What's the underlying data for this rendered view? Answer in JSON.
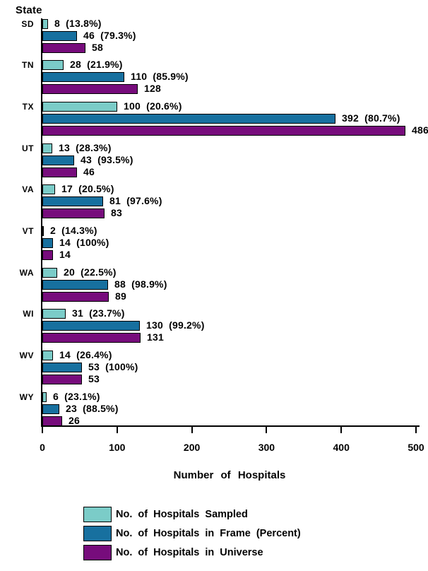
{
  "chart_data": {
    "type": "bar",
    "orientation": "horizontal",
    "y_axis_title": "State",
    "xlabel": "Number of Hospitals",
    "xlim": [
      0,
      500
    ],
    "x_ticks": [
      0,
      100,
      200,
      300,
      400,
      500
    ],
    "x_tick_labels": [
      "0",
      "100",
      "200",
      "300",
      "400",
      "500"
    ],
    "grid": false,
    "legend_position": "bottom-left",
    "categories": [
      "SD",
      "TN",
      "TX",
      "UT",
      "VA",
      "VT",
      "WA",
      "WI",
      "WV",
      "WY"
    ],
    "series": [
      {
        "key": "sampled",
        "name": "No. of Hospitals Sampled",
        "color": "#7BCCC8",
        "values": [
          8,
          28,
          100,
          13,
          17,
          2,
          20,
          31,
          14,
          6
        ],
        "labels": [
          "8  (13.8%)",
          "28  (21.9%)",
          "100  (20.6%)",
          "13  (28.3%)",
          "17  (20.5%)",
          "2  (14.3%)",
          "20  (22.5%)",
          "31  (23.7%)",
          "14  (26.4%)",
          "6  (23.1%)"
        ]
      },
      {
        "key": "frame",
        "name": "No. of Hospitals in Frame (Percent)",
        "color": "#17709F",
        "values": [
          46,
          110,
          392,
          43,
          81,
          14,
          88,
          130,
          53,
          23
        ],
        "labels": [
          "46  (79.3%)",
          "110  (85.9%)",
          "392  (80.7%)",
          "43  (93.5%)",
          "81  (97.6%)",
          "14  (100%)",
          "88  (98.9%)",
          "130  (99.2%)",
          "53  (100%)",
          "23  (88.5%)"
        ]
      },
      {
        "key": "universe",
        "name": "No. of Hospitals in Universe",
        "color": "#770C7C",
        "values": [
          58,
          128,
          486,
          46,
          83,
          14,
          89,
          131,
          53,
          26
        ],
        "labels": [
          "58",
          "128",
          "486",
          "46",
          "83",
          "14",
          "89",
          "131",
          "53",
          "26"
        ]
      }
    ]
  }
}
